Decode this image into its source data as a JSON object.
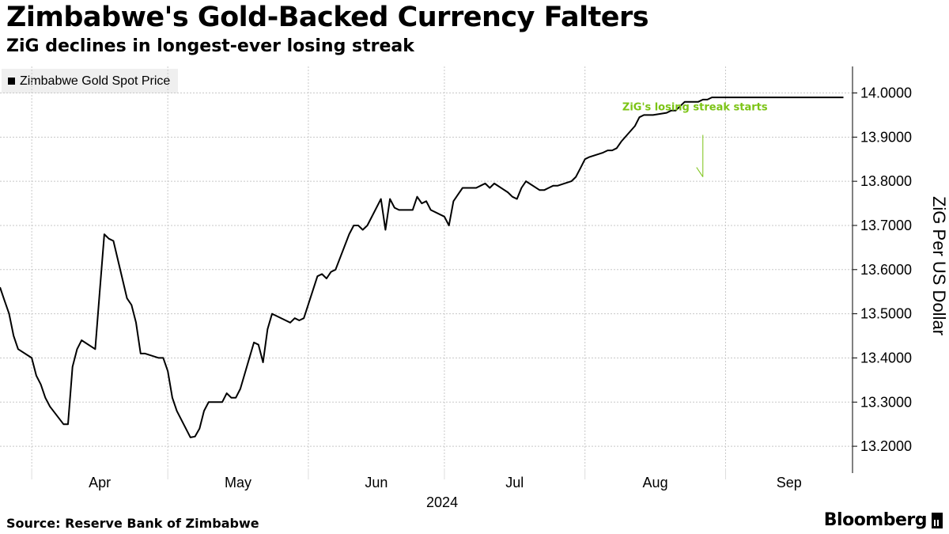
{
  "header": {
    "title": "Zimbabwe's Gold-Backed Currency Falters",
    "subtitle": "ZiG declines in longest-ever losing streak"
  },
  "footer": {
    "source": "Source: Reserve Bank of Zimbabwe",
    "brand": "Bloomberg"
  },
  "colors": {
    "line": "#000000",
    "annotation": "#7cc416",
    "grid": "#c8c8c8",
    "legend_bg": "#efefef"
  },
  "chart_data": {
    "type": "line",
    "title": "Zimbabwe's Gold-Backed Currency Falters",
    "subtitle": "ZiG declines in longest-ever losing streak",
    "ylabel": "ZiG Per US Dollar",
    "xlabel": "2024",
    "ylim": [
      13.15,
      14.06
    ],
    "yticks": [
      13.2,
      13.3,
      13.4,
      13.5,
      13.6,
      13.7,
      13.8,
      13.9,
      14.0
    ],
    "ytick_labels": [
      "13.2000",
      "13.3000",
      "13.4000",
      "13.5000",
      "13.6000",
      "13.7000",
      "13.8000",
      "13.9000",
      "14.0000"
    ],
    "legend": [
      "Zimbabwe Gold Spot Price"
    ],
    "legend_position": "top-left",
    "grid": true,
    "x_domain": [
      "2024-03-25",
      "2024-09-29"
    ],
    "x_months": [
      {
        "label": "Apr",
        "start": "2024-04-01",
        "end": "2024-05-01"
      },
      {
        "label": "May",
        "start": "2024-05-01",
        "end": "2024-06-01"
      },
      {
        "label": "Jun",
        "start": "2024-06-01",
        "end": "2024-07-01"
      },
      {
        "label": "Jul",
        "start": "2024-07-01",
        "end": "2024-08-01"
      },
      {
        "label": "Aug",
        "start": "2024-08-01",
        "end": "2024-09-01"
      },
      {
        "label": "Sep",
        "start": "2024-09-01",
        "end": "2024-09-29"
      }
    ],
    "x_year_label": "2024",
    "annotation": {
      "text": "ZiG's losing streak starts",
      "date": "2024-08-27",
      "value": 13.81,
      "arrow_top_value": 13.905
    },
    "series": [
      {
        "name": "Zimbabwe Gold Spot Price",
        "x": [
          "2024-03-25",
          "2024-03-26",
          "2024-03-27",
          "2024-03-28",
          "2024-03-29",
          "2024-04-01",
          "2024-04-02",
          "2024-04-03",
          "2024-04-04",
          "2024-04-05",
          "2024-04-08",
          "2024-04-09",
          "2024-04-10",
          "2024-04-11",
          "2024-04-12",
          "2024-04-15",
          "2024-04-16",
          "2024-04-17",
          "2024-04-18",
          "2024-04-19",
          "2024-04-22",
          "2024-04-23",
          "2024-04-24",
          "2024-04-25",
          "2024-04-26",
          "2024-04-29",
          "2024-04-30",
          "2024-05-01",
          "2024-05-02",
          "2024-05-03",
          "2024-05-06",
          "2024-05-07",
          "2024-05-08",
          "2024-05-09",
          "2024-05-10",
          "2024-05-13",
          "2024-05-14",
          "2024-05-15",
          "2024-05-16",
          "2024-05-17",
          "2024-05-20",
          "2024-05-21",
          "2024-05-22",
          "2024-05-23",
          "2024-05-24",
          "2024-05-27",
          "2024-05-28",
          "2024-05-29",
          "2024-05-30",
          "2024-05-31",
          "2024-06-03",
          "2024-06-04",
          "2024-06-05",
          "2024-06-06",
          "2024-06-07",
          "2024-06-10",
          "2024-06-11",
          "2024-06-12",
          "2024-06-13",
          "2024-06-14",
          "2024-06-17",
          "2024-06-18",
          "2024-06-19",
          "2024-06-20",
          "2024-06-21",
          "2024-06-24",
          "2024-06-25",
          "2024-06-26",
          "2024-06-27",
          "2024-06-28",
          "2024-07-01",
          "2024-07-02",
          "2024-07-03",
          "2024-07-04",
          "2024-07-05",
          "2024-07-08",
          "2024-07-09",
          "2024-07-10",
          "2024-07-11",
          "2024-07-12",
          "2024-07-15",
          "2024-07-16",
          "2024-07-17",
          "2024-07-18",
          "2024-07-19",
          "2024-07-22",
          "2024-07-23",
          "2024-07-24",
          "2024-07-25",
          "2024-07-26",
          "2024-07-29",
          "2024-07-30",
          "2024-07-31",
          "2024-08-01",
          "2024-08-02",
          "2024-08-05",
          "2024-08-06",
          "2024-08-07",
          "2024-08-08",
          "2024-08-09",
          "2024-08-12",
          "2024-08-13",
          "2024-08-14",
          "2024-08-15",
          "2024-08-16",
          "2024-08-19",
          "2024-08-20",
          "2024-08-21",
          "2024-08-22",
          "2024-08-23",
          "2024-08-26",
          "2024-08-27",
          "2024-08-28",
          "2024-08-29",
          "2024-08-30",
          "2024-09-02",
          "2024-09-03",
          "2024-09-04",
          "2024-09-05",
          "2024-09-06",
          "2024-09-09",
          "2024-09-10",
          "2024-09-11",
          "2024-09-12",
          "2024-09-13",
          "2024-09-16",
          "2024-09-17",
          "2024-09-18",
          "2024-09-19",
          "2024-09-20",
          "2024-09-23",
          "2024-09-24",
          "2024-09-25",
          "2024-09-26",
          "2024-09-27"
        ],
        "values": [
          13.56,
          13.53,
          13.5,
          13.45,
          13.42,
          13.4,
          13.36,
          13.34,
          13.31,
          13.29,
          13.25,
          13.25,
          13.38,
          13.42,
          13.44,
          13.42,
          13.55,
          13.68,
          13.67,
          13.665,
          13.535,
          13.52,
          13.48,
          13.41,
          13.41,
          13.4,
          13.4,
          13.37,
          13.31,
          13.28,
          13.22,
          13.222,
          13.24,
          13.28,
          13.3,
          13.3,
          13.32,
          13.31,
          13.31,
          13.33,
          13.435,
          13.43,
          13.39,
          13.465,
          13.5,
          13.485,
          13.48,
          13.49,
          13.485,
          13.49,
          13.585,
          13.59,
          13.58,
          13.595,
          13.6,
          13.68,
          13.7,
          13.7,
          13.69,
          13.7,
          13.76,
          13.69,
          13.76,
          13.74,
          13.735,
          13.735,
          13.765,
          13.75,
          13.755,
          13.735,
          13.72,
          13.7,
          13.755,
          13.77,
          13.785,
          13.785,
          13.79,
          13.795,
          13.785,
          13.795,
          13.775,
          13.765,
          13.76,
          13.785,
          13.8,
          13.78,
          13.78,
          13.785,
          13.79,
          13.79,
          13.8,
          13.81,
          13.83,
          13.85,
          13.855,
          13.865,
          13.87,
          13.87,
          13.875,
          13.89,
          13.925,
          13.945,
          13.95,
          13.95,
          13.95,
          13.955,
          13.96,
          13.96,
          13.97,
          13.98,
          13.98,
          13.985,
          13.985,
          13.99,
          13.99,
          13.99,
          13.99,
          13.99,
          13.99,
          13.99,
          13.99,
          13.99,
          13.99,
          13.99,
          13.99,
          13.99,
          13.99,
          13.99,
          13.99,
          13.99,
          13.99,
          13.99,
          13.99,
          13.99,
          13.99
        ]
      }
    ]
  }
}
